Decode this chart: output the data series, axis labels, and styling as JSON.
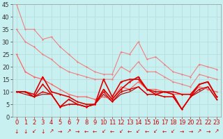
{
  "background_color": "#c8f0f0",
  "grid_color": "#b8dede",
  "xlim": [
    -0.5,
    23.5
  ],
  "ylim": [
    0,
    45
  ],
  "yticks": [
    0,
    5,
    10,
    15,
    20,
    25,
    30,
    35,
    40,
    45
  ],
  "xticks": [
    0,
    1,
    2,
    3,
    4,
    5,
    6,
    7,
    8,
    9,
    10,
    11,
    12,
    13,
    14,
    15,
    16,
    17,
    18,
    19,
    20,
    21,
    22,
    23
  ],
  "series": [
    {
      "y": [
        45,
        35,
        35,
        31,
        32,
        28,
        25,
        22,
        20,
        18,
        17,
        17,
        26,
        25,
        30,
        23,
        24,
        21,
        18,
        17,
        16,
        21,
        20,
        19
      ],
      "color": "#f08080",
      "linewidth": 0.8,
      "marker": "D",
      "markersize": 1.5
    },
    {
      "y": [
        35,
        30,
        28,
        25,
        23,
        20,
        18,
        17,
        16,
        15,
        15,
        15,
        20,
        18,
        22,
        18,
        18,
        16,
        14,
        13,
        12,
        17,
        16,
        15
      ],
      "color": "#f08080",
      "linewidth": 0.8,
      "marker": "D",
      "markersize": 1.5
    },
    {
      "y": [
        25,
        18,
        16,
        15,
        13,
        11,
        9,
        8,
        8,
        7,
        8,
        7,
        12,
        11,
        14,
        11,
        11,
        10,
        9,
        9,
        9,
        12,
        11,
        10
      ],
      "color": "#ff6666",
      "linewidth": 0.9,
      "marker": "D",
      "markersize": 1.5
    },
    {
      "y": [
        10,
        10,
        9,
        16,
        10,
        9,
        8,
        6,
        5,
        5,
        15,
        8,
        14,
        15,
        15,
        11,
        10,
        10,
        10,
        9,
        9,
        13,
        14,
        8
      ],
      "color": "#dd0000",
      "linewidth": 1.2,
      "marker": "D",
      "markersize": 1.5
    },
    {
      "y": [
        10,
        10,
        8,
        13,
        9,
        4,
        7,
        5,
        4,
        5,
        11,
        7,
        11,
        14,
        16,
        11,
        9,
        10,
        9,
        3,
        8,
        13,
        14,
        8
      ],
      "color": "#dd0000",
      "linewidth": 1.2,
      "marker": "D",
      "markersize": 1.5
    },
    {
      "y": [
        10,
        10,
        8,
        10,
        9,
        4,
        5,
        5,
        4,
        5,
        10,
        6,
        10,
        11,
        12,
        9,
        9,
        8,
        8,
        3,
        8,
        11,
        12,
        7
      ],
      "color": "#dd0000",
      "linewidth": 1.0,
      "marker": "D",
      "markersize": 1.5
    },
    {
      "y": [
        10,
        9,
        8,
        9,
        9,
        4,
        5,
        5,
        4,
        5,
        9,
        6,
        9,
        10,
        12,
        9,
        9,
        8,
        8,
        3,
        8,
        10,
        12,
        7
      ],
      "color": "#aa0000",
      "linewidth": 0.8,
      "marker": null,
      "markersize": 0
    }
  ],
  "wind_symbols": [
    "↓",
    "↓",
    "↙",
    "↓",
    "↗",
    "→",
    "↗",
    "→",
    "←",
    "←",
    "↙",
    "←",
    "↙",
    "←",
    "↙",
    "←",
    "↙",
    "←",
    "↙",
    "→",
    "→",
    "↗",
    "→",
    "↗"
  ],
  "xlabel_color": "#cc0000",
  "xlabel_fontsize": 7,
  "tick_fontsize": 6,
  "arrow_fontsize": 5.5
}
